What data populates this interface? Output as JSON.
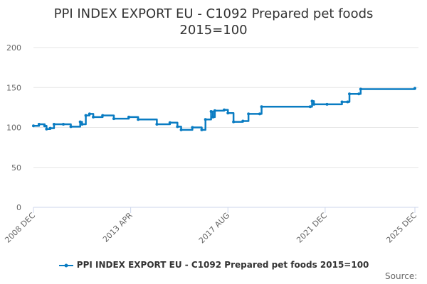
{
  "chart_data": {
    "type": "line",
    "title": "PPI INDEX EXPORT EU - C1092 Prepared pet foods",
    "subtitle": "2015=100",
    "xlabel": "",
    "ylabel": "",
    "ylim": [
      0,
      200
    ],
    "yticks": [
      0,
      50,
      100,
      150,
      200
    ],
    "xlim": [
      "2008-12",
      "2025-12"
    ],
    "xticks": [
      {
        "date": "2008-12",
        "label": "2008 DEC"
      },
      {
        "date": "2013-04",
        "label": "2013 APR"
      },
      {
        "date": "2017-08",
        "label": "2017 AUG"
      },
      {
        "date": "2021-12",
        "label": "2021 DEC"
      },
      {
        "date": "2025-12",
        "label": "2025 DEC"
      }
    ],
    "grid": true,
    "legend_position": "bottom",
    "color": "#0a7cc2",
    "series": [
      {
        "name": "PPI INDEX EXPORT EU - C1092 Prepared pet foods 2015=100",
        "x": [
          "2008-12",
          "2009-03",
          "2009-06",
          "2009-07",
          "2009-09",
          "2009-11",
          "2010-04",
          "2010-08",
          "2011-01",
          "2011-02",
          "2011-04",
          "2011-06",
          "2011-08",
          "2012-01",
          "2012-07",
          "2013-03",
          "2013-08",
          "2014-06",
          "2015-01",
          "2015-05",
          "2015-07",
          "2016-01",
          "2016-06",
          "2016-08",
          "2016-11",
          "2016-12",
          "2017-01",
          "2017-06",
          "2017-08",
          "2017-11",
          "2018-04",
          "2018-07",
          "2019-01",
          "2019-02",
          "2021-04",
          "2021-05",
          "2021-06",
          "2022-01",
          "2022-09",
          "2022-12",
          "2023-01",
          "2023-06",
          "2023-07",
          "2025-12"
        ],
        "values": [
          102,
          104,
          102,
          98,
          99,
          104,
          104,
          101,
          107,
          104,
          115,
          117,
          113,
          115,
          111,
          113,
          110,
          104,
          106,
          101,
          97,
          100,
          97,
          110,
          120,
          113,
          121,
          122,
          118,
          107,
          108,
          117,
          117,
          126,
          126,
          133,
          129,
          129,
          132,
          132,
          142,
          142,
          148,
          149
        ]
      }
    ]
  },
  "source_label": "Source:"
}
